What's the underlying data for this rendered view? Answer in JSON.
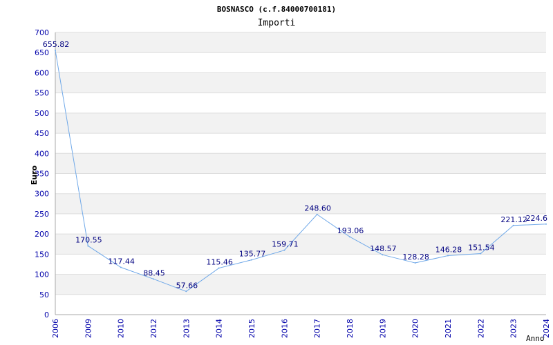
{
  "chart_data": {
    "type": "line",
    "title": "BOSNASCO (c.f.84000700181)",
    "subtitle": "Importi",
    "ylabel": "Euro",
    "xlabel": "Anno",
    "ylim": [
      0,
      700
    ],
    "ytick_step": 50,
    "grid": true,
    "categories": [
      "2006",
      "2009",
      "2010",
      "2012",
      "2013",
      "2014",
      "2015",
      "2016",
      "2017",
      "2018",
      "2019",
      "2020",
      "2021",
      "2022",
      "2023",
      "2024"
    ],
    "series": [
      {
        "values": [
          655.82,
          170.55,
          117.44,
          88.45,
          57.66,
          115.46,
          135.77,
          159.71,
          248.6,
          193.06,
          148.57,
          128.28,
          146.28,
          151.54,
          221.12,
          224.6
        ],
        "labels": [
          "655.82",
          "170.55",
          "117.44",
          "88.45",
          "57.66",
          "115.46",
          "135.77",
          "159.71",
          "248.60",
          "193.06",
          "148.57",
          "128.28",
          "146.28",
          "151.54",
          "221.12",
          "224.6"
        ],
        "color": "#6fa8e8"
      }
    ],
    "colors": {
      "band": "#f2f2f2",
      "grid": "#dddddd",
      "axis": "#aaaaaa",
      "tick_text": "#0000aa",
      "label_text": "#000080"
    }
  }
}
